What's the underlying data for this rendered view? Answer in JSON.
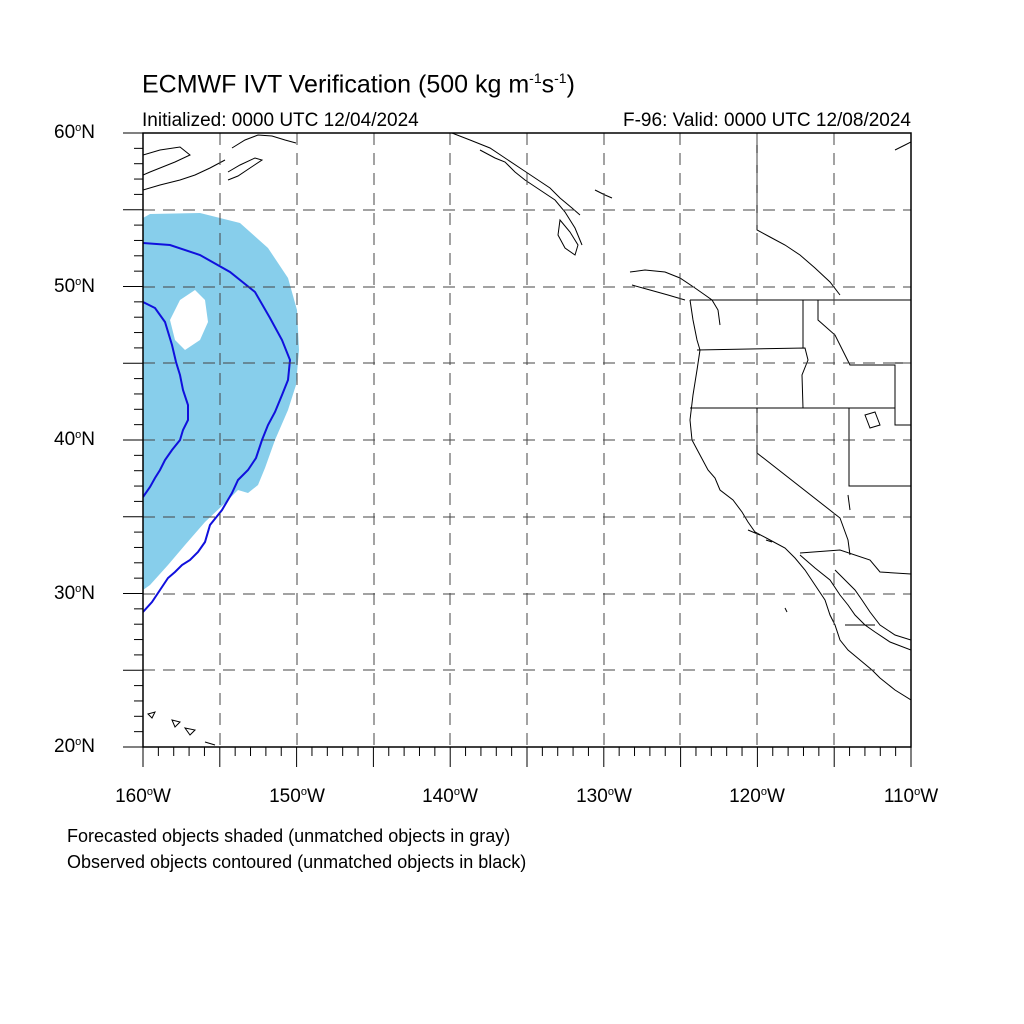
{
  "title": {
    "main": "ECMWF IVT Verification (500 kg m",
    "sup1": "-1",
    "mid": "s",
    "sup2": "-1",
    "end": ")"
  },
  "subtitle": {
    "initialized": "Initialized: 0000 UTC 12/04/2024",
    "valid": "F-96: Valid: 0000 UTC 12/08/2024"
  },
  "latitude_labels": [
    {
      "num": "60",
      "suffix": "N"
    },
    {
      "num": "50",
      "suffix": "N"
    },
    {
      "num": "40",
      "suffix": "N"
    },
    {
      "num": "30",
      "suffix": "N"
    },
    {
      "num": "20",
      "suffix": "N"
    }
  ],
  "longitude_labels": [
    {
      "num": "160",
      "suffix": "W"
    },
    {
      "num": "150",
      "suffix": "W"
    },
    {
      "num": "140",
      "suffix": "W"
    },
    {
      "num": "130",
      "suffix": "W"
    },
    {
      "num": "120",
      "suffix": "W"
    },
    {
      "num": "110",
      "suffix": "W"
    }
  ],
  "notes": [
    "Forecasted objects shaded (unmatched objects in gray)",
    "Observed objects contoured (unmatched objects in black)"
  ],
  "colors": {
    "forecast_fill": "#87ceeb",
    "observed_contour": "#0000dd",
    "coastline": "#000000",
    "grid": "#555555"
  },
  "map": {
    "lon_range": [
      -160,
      -110
    ],
    "lat_range": [
      20,
      60
    ],
    "grid_interval_deg": 5,
    "grid_style": "dashed"
  }
}
